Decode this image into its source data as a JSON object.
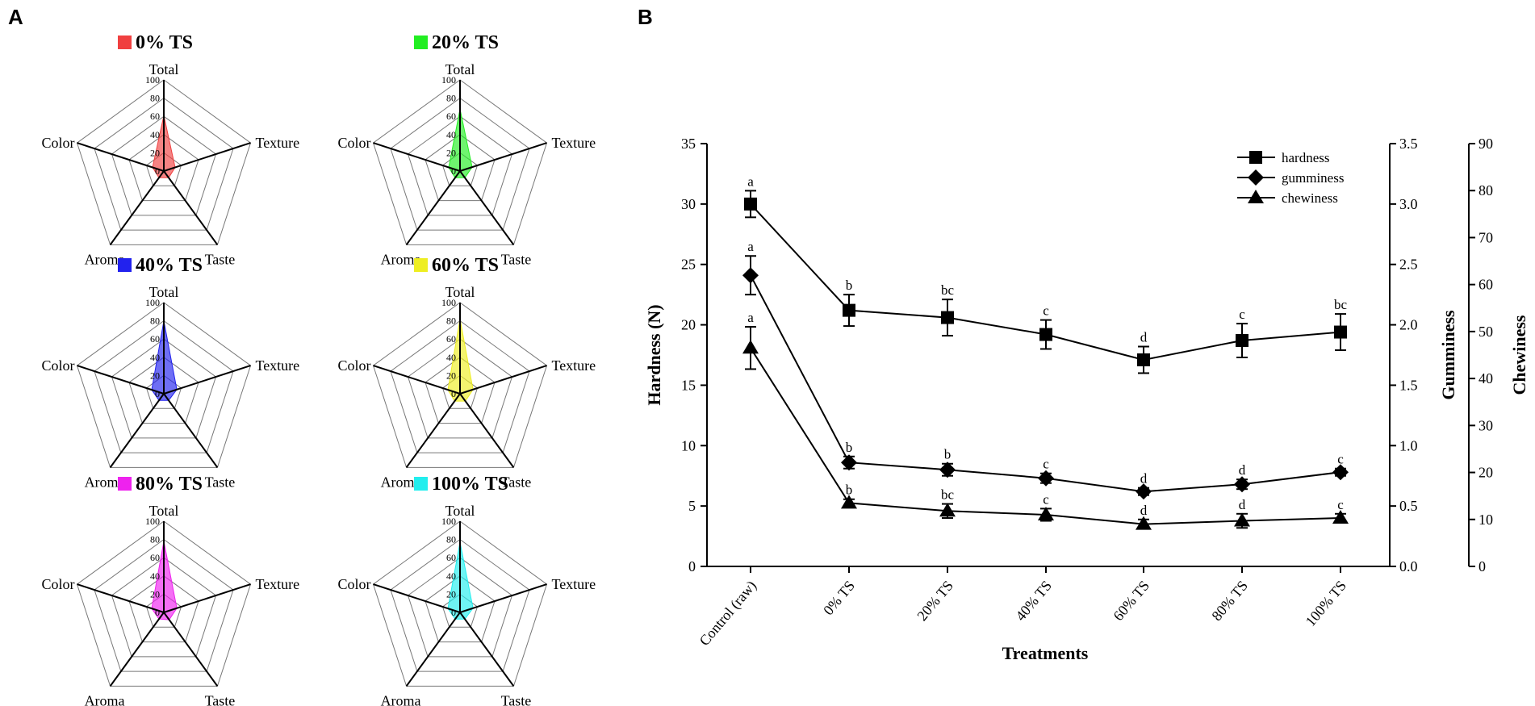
{
  "panel_a_label": "A",
  "panel_b_label": "B",
  "chart_data": [
    {
      "type": "radar",
      "title": "0% TS",
      "color": "#f04040",
      "axes": [
        "Total",
        "Texture",
        "Taste",
        "Aroma",
        "Color"
      ],
      "ticks": [
        "0",
        "20",
        "40",
        "60",
        "80",
        "100"
      ],
      "rmax": 100,
      "values": [
        61,
        13,
        9,
        9,
        13
      ]
    },
    {
      "type": "radar",
      "title": "20% TS",
      "color": "#22ee22",
      "axes": [
        "Total",
        "Texture",
        "Taste",
        "Aroma",
        "Color"
      ],
      "ticks": [
        "0",
        "20",
        "40",
        "60",
        "80",
        "100"
      ],
      "rmax": 100,
      "values": [
        68,
        14,
        9,
        9,
        13
      ]
    },
    {
      "type": "radar",
      "title": "40% TS",
      "color": "#2222ee",
      "axes": [
        "Total",
        "Texture",
        "Taste",
        "Aroma",
        "Color"
      ],
      "ticks": [
        "0",
        "20",
        "40",
        "60",
        "80",
        "100"
      ],
      "rmax": 100,
      "values": [
        80,
        15,
        9,
        9,
        14
      ]
    },
    {
      "type": "radar",
      "title": "60% TS",
      "color": "#eeee22",
      "axes": [
        "Total",
        "Texture",
        "Taste",
        "Aroma",
        "Color"
      ],
      "ticks": [
        "0",
        "20",
        "40",
        "60",
        "80",
        "100"
      ],
      "rmax": 100,
      "values": [
        82,
        15,
        10,
        10,
        14
      ]
    },
    {
      "type": "radar",
      "title": "80% TS",
      "color": "#ee22ee",
      "axes": [
        "Total",
        "Texture",
        "Taste",
        "Aroma",
        "Color"
      ],
      "ticks": [
        "0",
        "20",
        "40",
        "60",
        "80",
        "100"
      ],
      "rmax": 100,
      "values": [
        78,
        15,
        10,
        9,
        14
      ]
    },
    {
      "type": "radar",
      "title": "100% TS",
      "color": "#22eeee",
      "axes": [
        "Total",
        "Texture",
        "Taste",
        "Aroma",
        "Color"
      ],
      "ticks": [
        "0",
        "20",
        "40",
        "60",
        "80",
        "100"
      ],
      "rmax": 100,
      "values": [
        77,
        15,
        9,
        9,
        14
      ]
    },
    {
      "type": "line",
      "title": "",
      "categories": [
        "Control (raw)",
        "0% TS",
        "20% TS",
        "40% TS",
        "60% TS",
        "80% TS",
        "100% TS"
      ],
      "xlabel": "Treatments",
      "axes": [
        {
          "label": "Hardness (N)",
          "ylim": [
            0,
            35
          ],
          "ticks": [
            "0",
            "5",
            "10",
            "15",
            "20",
            "25",
            "30",
            "35"
          ],
          "tick_values": [
            0,
            5,
            10,
            15,
            20,
            25,
            30,
            35
          ]
        },
        {
          "label": "Gumminess",
          "ylim": [
            0,
            3.5
          ],
          "ticks": [
            "0.0",
            "0.5",
            "1.0",
            "1.5",
            "2.0",
            "2.5",
            "3.0",
            "3.5"
          ],
          "tick_values": [
            0,
            0.5,
            1.0,
            1.5,
            2.0,
            2.5,
            3.0,
            3.5
          ]
        },
        {
          "label": "Chewiness",
          "ylim": [
            0,
            90
          ],
          "ticks": [
            "0",
            "10",
            "20",
            "30",
            "40",
            "50",
            "60",
            "70",
            "80",
            "90"
          ],
          "tick_values": [
            0,
            10,
            20,
            30,
            40,
            50,
            60,
            70,
            80,
            90
          ]
        }
      ],
      "legend_position": "top-right",
      "series": [
        {
          "name": "hardness",
          "marker": "square",
          "axis": 0,
          "values": [
            30.0,
            21.2,
            20.6,
            19.2,
            17.1,
            18.7,
            19.4
          ],
          "errors": [
            1.1,
            1.3,
            1.5,
            1.2,
            1.1,
            1.4,
            1.5
          ],
          "letters": [
            "a",
            "b",
            "bc",
            "c",
            "d",
            "c",
            "bc"
          ]
        },
        {
          "name": "gumminess",
          "marker": "diamond",
          "axis": 1,
          "values": [
            2.41,
            0.86,
            0.8,
            0.73,
            0.62,
            0.68,
            0.78
          ],
          "errors": [
            0.16,
            0.05,
            0.05,
            0.04,
            0.03,
            0.04,
            0.03
          ],
          "letters": [
            "a",
            "b",
            "b",
            "c",
            "d",
            "d",
            "c"
          ]
        },
        {
          "name": "chewiness",
          "marker": "triangle",
          "axis": 2,
          "values": [
            46.5,
            13.5,
            11.8,
            11.0,
            9.0,
            9.7,
            10.3
          ],
          "errors": [
            4.5,
            0.8,
            1.5,
            1.3,
            1.0,
            1.5,
            0.9
          ],
          "letters": [
            "a",
            "b",
            "bc",
            "c",
            "d",
            "d",
            "c"
          ]
        }
      ]
    }
  ]
}
